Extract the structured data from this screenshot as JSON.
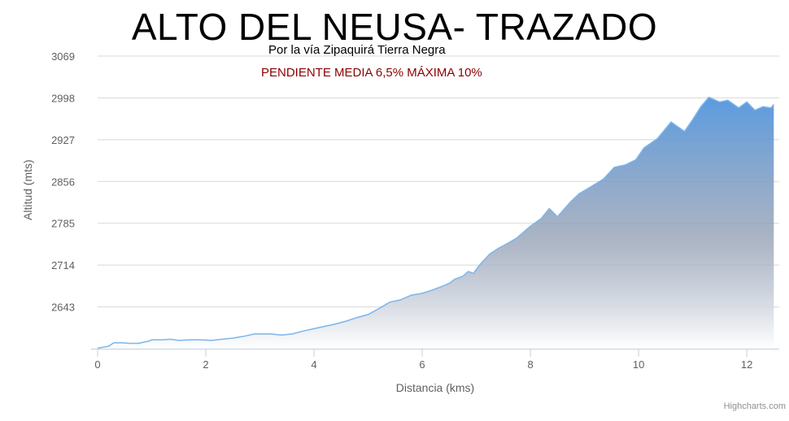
{
  "chart_data": {
    "type": "area",
    "title": "ALTO DEL NEUSA- TRAZADO",
    "subtitle": "Por la vía Zipaquirá Tierra Negra",
    "annotation": "PENDIENTE MEDIA 6,5%  MÁXIMA 10%",
    "xlabel": "Distancia (kms)",
    "ylabel": "Altitud (mts)",
    "xlim": [
      0,
      12.6
    ],
    "ylim": [
      2572,
      3069
    ],
    "xticks": [
      "0",
      "2",
      "4",
      "6",
      "8",
      "10",
      "12"
    ],
    "yticks": [
      "2643",
      "2714",
      "2785",
      "2856",
      "2927",
      "2998",
      "3069"
    ],
    "grid": true,
    "colors": {
      "line": "#7cb5ec",
      "fill_top": "#5b9be0",
      "fill_bottom": "#ffffff"
    },
    "series": [
      {
        "x": [
          0,
          0.2,
          0.3,
          0.45,
          0.6,
          0.75,
          0.95,
          1.0,
          1.2,
          1.35,
          1.5,
          1.7,
          1.9,
          2.1,
          2.3,
          2.5,
          2.7,
          2.9,
          3.0,
          3.2,
          3.4,
          3.6,
          3.8,
          4.0,
          4.2,
          4.4,
          4.6,
          4.8,
          5.0,
          5.2,
          5.4,
          5.6,
          5.8,
          6.0,
          6.2,
          6.4,
          6.5,
          6.6,
          6.75,
          6.85,
          6.95,
          7.05,
          7.25,
          7.4,
          7.6,
          7.75,
          7.85,
          8.0,
          8.2,
          8.35,
          8.5,
          8.75,
          8.9,
          9.1,
          9.35,
          9.55,
          9.75,
          9.95,
          10.1,
          10.35,
          10.6,
          10.85,
          11.0,
          11.15,
          11.3,
          11.5,
          11.65,
          11.85,
          12.0,
          12.15,
          12.3,
          12.45,
          12.5
        ],
        "y": [
          2573,
          2576,
          2582,
          2582,
          2581,
          2581,
          2585,
          2587,
          2587,
          2588,
          2586,
          2587,
          2587,
          2586,
          2588,
          2590,
          2593,
          2597,
          2597,
          2597,
          2595,
          2597,
          2602,
          2606,
          2610,
          2614,
          2619,
          2625,
          2630,
          2640,
          2651,
          2655,
          2663,
          2666,
          2672,
          2679,
          2683,
          2690,
          2695,
          2703,
          2700,
          2713,
          2733,
          2742,
          2752,
          2760,
          2768,
          2780,
          2793,
          2810,
          2796,
          2822,
          2835,
          2846,
          2860,
          2880,
          2884,
          2893,
          2913,
          2929,
          2957,
          2941,
          2961,
          2983,
          2999,
          2991,
          2994,
          2981,
          2991,
          2977,
          2983,
          2981,
          2987
        ]
      }
    ]
  }
}
